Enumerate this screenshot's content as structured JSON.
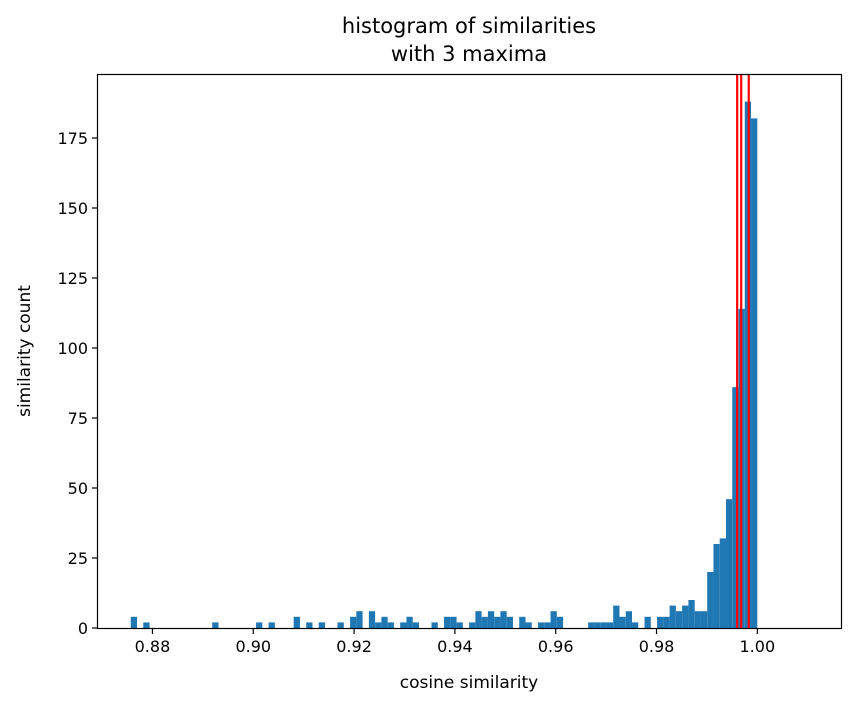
{
  "chart_data": {
    "type": "bar",
    "title_lines": [
      "histogram of similarities",
      "with 3 maxima"
    ],
    "xlabel": "cosine similarity",
    "ylabel": "similarity count",
    "xlim": [
      0.8692,
      1.0166
    ],
    "ylim": [
      0,
      197.5
    ],
    "x_ticks": [
      {
        "value": 0.88,
        "label": "0.88"
      },
      {
        "value": 0.9,
        "label": "0.90"
      },
      {
        "value": 0.92,
        "label": "0.92"
      },
      {
        "value": 0.94,
        "label": "0.94"
      },
      {
        "value": 0.96,
        "label": "0.96"
      },
      {
        "value": 0.98,
        "label": "0.98"
      },
      {
        "value": 1.0,
        "label": "1.00"
      }
    ],
    "y_ticks": [
      {
        "value": 0,
        "label": "0"
      },
      {
        "value": 25,
        "label": "25"
      },
      {
        "value": 50,
        "label": "50"
      },
      {
        "value": 75,
        "label": "75"
      },
      {
        "value": 100,
        "label": "100"
      },
      {
        "value": 125,
        "label": "125"
      },
      {
        "value": 150,
        "label": "150"
      },
      {
        "value": 175,
        "label": "175"
      }
    ],
    "grid": false,
    "bar_color": "#1f77b4",
    "maxima_color": "#ff0000",
    "bin_start": 0.8757,
    "bin_width": 0.001243,
    "counts": [
      4,
      0,
      2,
      0,
      0,
      0,
      0,
      0,
      0,
      0,
      0,
      0,
      0,
      2,
      0,
      0,
      0,
      0,
      0,
      0,
      2,
      0,
      2,
      0,
      0,
      0,
      4,
      0,
      2,
      0,
      2,
      0,
      0,
      2,
      0,
      4,
      6,
      0,
      6,
      2,
      4,
      2,
      0,
      2,
      4,
      2,
      0,
      0,
      2,
      0,
      4,
      4,
      2,
      0,
      2,
      6,
      4,
      6,
      4,
      6,
      4,
      0,
      4,
      2,
      0,
      2,
      2,
      6,
      4,
      0,
      0,
      0,
      0,
      2,
      2,
      2,
      2,
      8,
      4,
      6,
      2,
      0,
      4,
      0,
      4,
      4,
      8,
      6,
      8,
      10,
      6,
      6,
      20,
      30,
      32,
      46,
      86,
      114,
      188,
      182
    ],
    "maxima": [
      0.996,
      0.9968,
      0.9983
    ]
  }
}
